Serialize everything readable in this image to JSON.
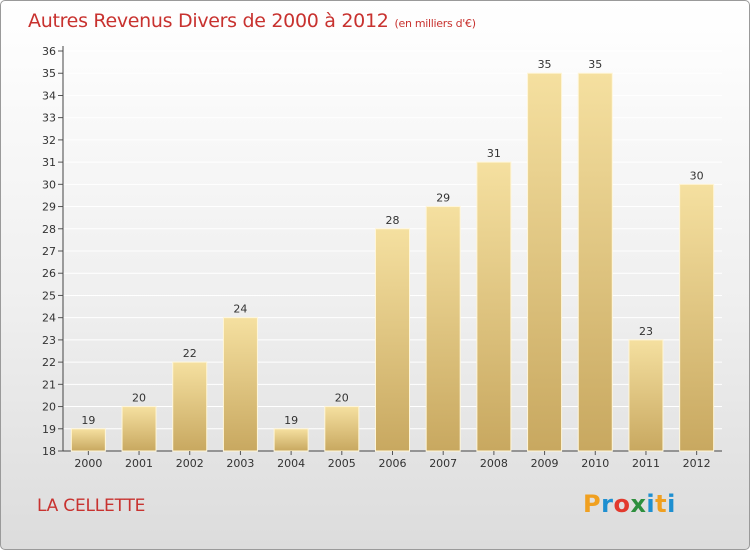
{
  "header": {
    "title": "Autres Revenus Divers de 2000 à 2012",
    "subtitle": "(en milliers d'€)"
  },
  "footer": {
    "place": "LA CELLETTE",
    "logo_letters": [
      "P",
      "r",
      "o",
      "x",
      "i",
      "t",
      "i"
    ],
    "logo_colors": [
      "#f0a020",
      "#1e8fd0",
      "#e23a2e",
      "#2e8f3e",
      "#1e8fd0",
      "#f0a020",
      "#1e8fd0"
    ]
  },
  "colors": {
    "title": "#c8322f",
    "bar_light": "#f5e0a0",
    "bar_dark": "#c8a860",
    "grid": "#ffffff"
  },
  "chart_data": {
    "type": "bar",
    "title": "Autres Revenus Divers de 2000 à 2012",
    "subtitle": "(en milliers d'€)",
    "categories": [
      "2000",
      "2001",
      "2002",
      "2003",
      "2004",
      "2005",
      "2006",
      "2007",
      "2008",
      "2009",
      "2010",
      "2011",
      "2012"
    ],
    "values": [
      19,
      20,
      22,
      24,
      19,
      20,
      28,
      29,
      31,
      35,
      35,
      23,
      30
    ],
    "xlabel": "",
    "ylabel": "",
    "ylim": [
      18,
      36
    ],
    "yticks": [
      18,
      19,
      20,
      21,
      22,
      23,
      24,
      25,
      26,
      27,
      28,
      29,
      30,
      31,
      32,
      33,
      34,
      35,
      36
    ],
    "grid": true,
    "data_labels": true
  }
}
